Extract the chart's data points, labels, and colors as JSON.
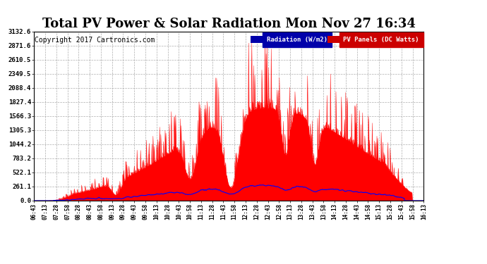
{
  "title": "Total PV Power & Solar Radiation Mon Nov 27 16:34",
  "copyright": "Copyright 2017 Cartronics.com",
  "y_ticks": [
    0.0,
    261.1,
    522.1,
    783.2,
    1044.2,
    1305.3,
    1566.3,
    1827.4,
    2088.4,
    2349.5,
    2610.5,
    2871.6,
    3132.6
  ],
  "y_max": 3132.6,
  "x_labels": [
    "06:43",
    "07:13",
    "07:28",
    "07:58",
    "08:28",
    "08:43",
    "08:58",
    "09:13",
    "09:28",
    "09:43",
    "09:58",
    "10:13",
    "10:28",
    "10:43",
    "10:58",
    "11:13",
    "11:28",
    "11:43",
    "11:58",
    "12:13",
    "12:28",
    "12:43",
    "12:58",
    "13:13",
    "13:28",
    "13:43",
    "13:58",
    "14:13",
    "14:28",
    "14:43",
    "14:58",
    "15:13",
    "15:28",
    "15:43",
    "15:58",
    "16:13"
  ],
  "fill_color": "#ff0000",
  "line_color_blue": "#0000ff",
  "background_color": "#ffffff",
  "grid_color": "#aaaaaa",
  "title_fontsize": 13,
  "copyright_fontsize": 7,
  "legend_blue_bg": "#0000aa",
  "legend_red_bg": "#cc0000"
}
